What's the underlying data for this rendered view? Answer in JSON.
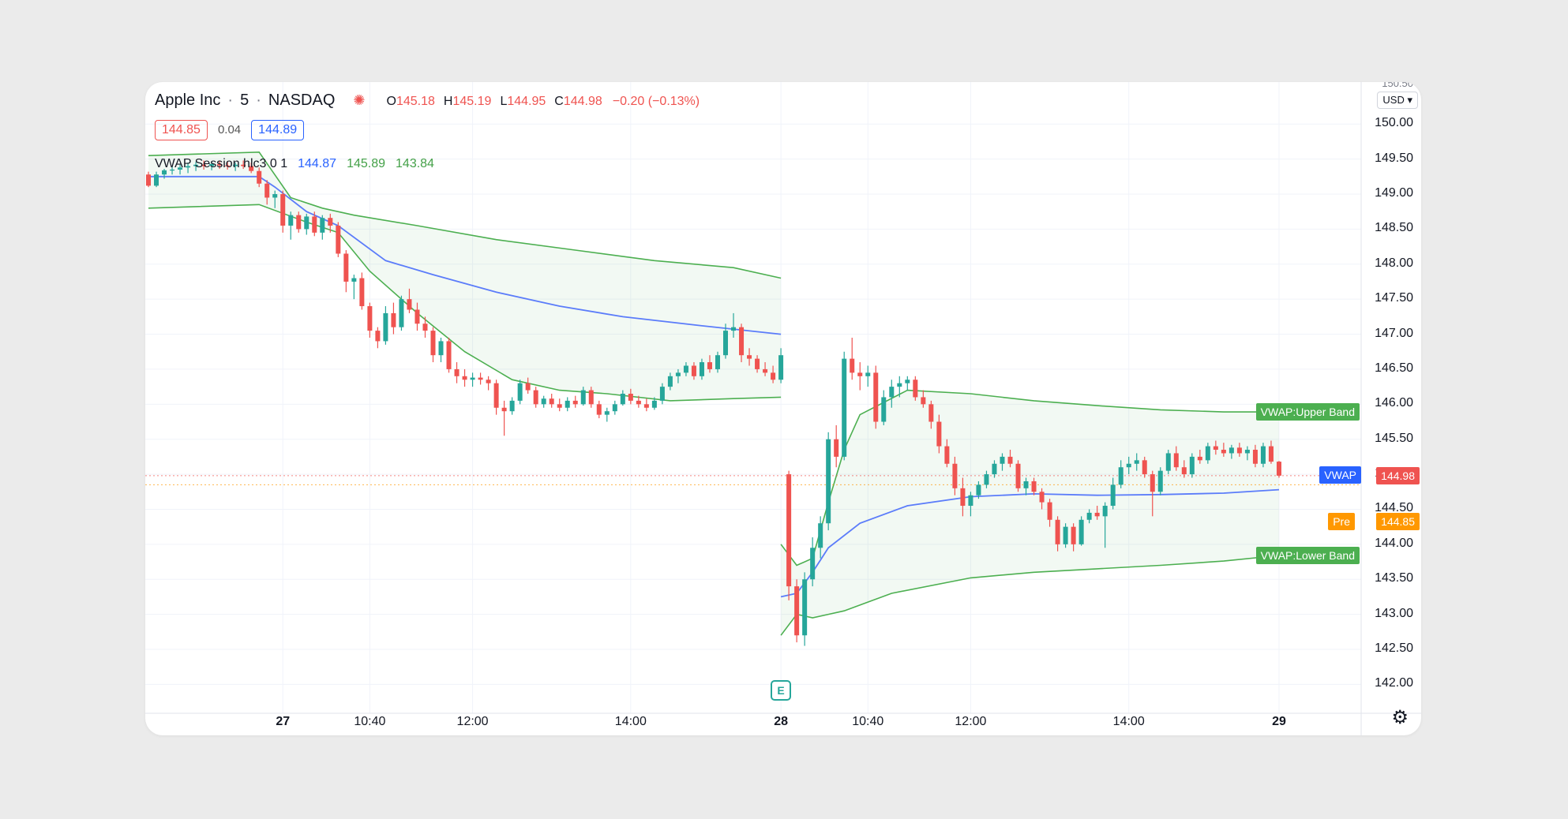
{
  "header": {
    "symbol": "Apple Inc",
    "sep1": "·",
    "interval": "5",
    "sep2": "·",
    "exchange": "NASDAQ",
    "ohlc": {
      "o_label": "O",
      "o": "145.18",
      "h_label": "H",
      "h": "145.19",
      "l_label": "L",
      "l": "144.95",
      "c_label": "C",
      "c": "144.98",
      "change": "−0.20 (−0.13%)"
    }
  },
  "quote": {
    "bid": "144.85",
    "spread": "0.04",
    "ask": "144.89"
  },
  "indicator": {
    "name": "VWAP Session hlc3 0 1",
    "vwap": "144.87",
    "upper": "145.89",
    "lower": "143.84"
  },
  "price_axis": {
    "currency_button": "USD ▾",
    "top_partial_label": "150.50"
  },
  "tags": {
    "upper_band": "VWAP:Upper Band",
    "lower_band": "VWAP:Lower Band",
    "vwap": "VWAP",
    "last_price": "144.98",
    "pre_label": "Pre",
    "pre_price": "144.85"
  },
  "earnings_marker": "E",
  "settings_icon": "gear-icon",
  "colors": {
    "up": "#26a69a",
    "down": "#ef5350",
    "vwap": "#5b7cfa",
    "band": "#4caf50",
    "band_fill": "rgba(76,175,80,0.07)",
    "pre": "#ff9800"
  },
  "chart_data": {
    "type": "candlestick",
    "ylim": [
      141.7,
      150.6
    ],
    "yticks": [
      142.0,
      142.5,
      143.0,
      143.5,
      144.0,
      144.5,
      145.0,
      145.5,
      146.0,
      146.5,
      147.0,
      147.5,
      148.0,
      148.5,
      149.0,
      149.5,
      150.0
    ],
    "ytick_labels": [
      "142.00",
      "142.50",
      "143.00",
      "143.50",
      "144.00",
      "144.50",
      "145.00",
      "145.50",
      "146.00",
      "146.50",
      "147.00",
      "147.50",
      "148.00",
      "148.50",
      "149.00",
      "149.50",
      "150.00"
    ],
    "xticks": [
      {
        "label": "27",
        "bold": true,
        "i": 17
      },
      {
        "label": "10:40",
        "bold": false,
        "i": 28
      },
      {
        "label": "12:00",
        "bold": false,
        "i": 41
      },
      {
        "label": "14:00",
        "bold": false,
        "i": 61
      },
      {
        "label": "28",
        "bold": true,
        "i": 80
      },
      {
        "label": "10:40",
        "bold": false,
        "i": 91
      },
      {
        "label": "12:00",
        "bold": false,
        "i": 104
      },
      {
        "label": "14:00",
        "bold": false,
        "i": 124
      },
      {
        "label": "29",
        "bold": true,
        "i": 143
      }
    ],
    "bar_count": 146,
    "candles": [
      [
        149.28,
        149.32,
        149.1,
        149.12
      ],
      [
        149.12,
        149.32,
        149.1,
        149.28
      ],
      [
        149.28,
        149.36,
        149.22,
        149.34
      ],
      [
        149.34,
        149.4,
        149.28,
        149.35
      ],
      [
        149.35,
        149.42,
        149.28,
        149.38
      ],
      [
        149.38,
        149.45,
        149.3,
        149.4
      ],
      [
        149.4,
        149.46,
        149.33,
        149.42
      ],
      [
        149.42,
        149.48,
        149.35,
        149.4
      ],
      [
        149.4,
        149.46,
        149.34,
        149.43
      ],
      [
        149.43,
        149.48,
        149.36,
        149.41
      ],
      [
        149.41,
        149.46,
        149.35,
        149.4
      ],
      [
        149.4,
        149.45,
        149.33,
        149.42
      ],
      [
        149.42,
        149.48,
        149.36,
        149.4
      ],
      [
        149.4,
        149.45,
        149.3,
        149.33
      ],
      [
        149.33,
        149.38,
        149.1,
        149.15
      ],
      [
        149.15,
        149.2,
        148.85,
        148.95
      ],
      [
        148.95,
        149.05,
        148.8,
        149.0
      ],
      [
        149.0,
        149.05,
        148.45,
        148.55
      ],
      [
        148.55,
        148.75,
        148.35,
        148.7
      ],
      [
        148.7,
        148.75,
        148.45,
        148.5
      ],
      [
        148.5,
        148.72,
        148.42,
        148.68
      ],
      [
        148.68,
        148.75,
        148.4,
        148.45
      ],
      [
        148.45,
        148.7,
        148.35,
        148.66
      ],
      [
        148.66,
        148.72,
        148.45,
        148.55
      ],
      [
        148.55,
        148.6,
        148.1,
        148.15
      ],
      [
        148.15,
        148.2,
        147.6,
        147.75
      ],
      [
        147.75,
        147.85,
        147.5,
        147.8
      ],
      [
        147.8,
        147.88,
        147.35,
        147.4
      ],
      [
        147.4,
        147.45,
        146.95,
        147.05
      ],
      [
        147.05,
        147.1,
        146.8,
        146.9
      ],
      [
        146.9,
        147.4,
        146.85,
        147.3
      ],
      [
        147.3,
        147.45,
        147.0,
        147.1
      ],
      [
        147.1,
        147.55,
        147.05,
        147.5
      ],
      [
        147.5,
        147.65,
        147.3,
        147.35
      ],
      [
        147.35,
        147.45,
        147.05,
        147.15
      ],
      [
        147.15,
        147.25,
        146.95,
        147.05
      ],
      [
        147.05,
        147.1,
        146.6,
        146.7
      ],
      [
        146.7,
        146.95,
        146.6,
        146.9
      ],
      [
        146.9,
        146.95,
        146.45,
        146.5
      ],
      [
        146.5,
        146.6,
        146.3,
        146.4
      ],
      [
        146.4,
        146.5,
        146.25,
        146.35
      ],
      [
        146.35,
        146.45,
        146.25,
        146.38
      ],
      [
        146.38,
        146.45,
        146.28,
        146.35
      ],
      [
        146.35,
        146.4,
        146.2,
        146.3
      ],
      [
        146.3,
        146.35,
        145.85,
        145.95
      ],
      [
        145.95,
        146.05,
        145.55,
        145.9
      ],
      [
        145.9,
        146.1,
        145.85,
        146.05
      ],
      [
        146.05,
        146.35,
        146.0,
        146.3
      ],
      [
        146.3,
        146.38,
        146.15,
        146.2
      ],
      [
        146.2,
        146.25,
        145.95,
        146.0
      ],
      [
        146.0,
        146.12,
        145.95,
        146.08
      ],
      [
        146.08,
        146.15,
        145.95,
        146.0
      ],
      [
        146.0,
        146.08,
        145.9,
        145.95
      ],
      [
        145.95,
        146.1,
        145.9,
        146.05
      ],
      [
        146.05,
        146.12,
        145.95,
        146.0
      ],
      [
        146.0,
        146.25,
        145.98,
        146.2
      ],
      [
        146.2,
        146.25,
        145.95,
        146.0
      ],
      [
        146.0,
        146.05,
        145.8,
        145.85
      ],
      [
        145.85,
        145.95,
        145.75,
        145.9
      ],
      [
        145.9,
        146.05,
        145.85,
        146.0
      ],
      [
        146.0,
        146.2,
        145.98,
        146.15
      ],
      [
        146.15,
        146.22,
        146.0,
        146.05
      ],
      [
        146.05,
        146.12,
        145.95,
        146.0
      ],
      [
        146.0,
        146.08,
        145.9,
        145.95
      ],
      [
        145.95,
        146.1,
        145.92,
        146.05
      ],
      [
        146.05,
        146.3,
        146.0,
        146.25
      ],
      [
        146.25,
        146.45,
        146.2,
        146.4
      ],
      [
        146.4,
        146.5,
        146.3,
        146.45
      ],
      [
        146.45,
        146.6,
        146.4,
        146.55
      ],
      [
        146.55,
        146.6,
        146.35,
        146.4
      ],
      [
        146.4,
        146.65,
        146.35,
        146.6
      ],
      [
        146.6,
        146.7,
        146.45,
        146.5
      ],
      [
        146.5,
        146.75,
        146.45,
        146.7
      ],
      [
        146.7,
        147.15,
        146.65,
        147.05
      ],
      [
        147.05,
        147.3,
        146.95,
        147.1
      ],
      [
        147.1,
        147.15,
        146.6,
        146.7
      ],
      [
        146.7,
        146.8,
        146.55,
        146.65
      ],
      [
        146.65,
        146.7,
        146.45,
        146.5
      ],
      [
        146.5,
        146.6,
        146.4,
        146.45
      ],
      [
        146.45,
        146.55,
        146.3,
        146.35
      ],
      [
        146.35,
        146.8,
        146.3,
        146.7
      ],
      [
        145.0,
        145.05,
        143.2,
        143.4
      ],
      [
        143.4,
        143.5,
        142.6,
        142.7
      ],
      [
        142.7,
        143.6,
        142.55,
        143.5
      ],
      [
        143.5,
        144.1,
        143.4,
        143.95
      ],
      [
        143.95,
        144.4,
        143.8,
        144.3
      ],
      [
        144.3,
        145.6,
        144.2,
        145.5
      ],
      [
        145.5,
        145.7,
        145.1,
        145.25
      ],
      [
        145.25,
        146.75,
        145.2,
        146.65
      ],
      [
        146.65,
        146.95,
        146.35,
        146.45
      ],
      [
        146.45,
        146.6,
        146.2,
        146.4
      ],
      [
        146.4,
        146.55,
        146.25,
        146.45
      ],
      [
        146.45,
        146.55,
        145.65,
        145.75
      ],
      [
        145.75,
        146.2,
        145.7,
        146.1
      ],
      [
        146.1,
        146.35,
        145.95,
        146.25
      ],
      [
        146.25,
        146.4,
        146.1,
        146.3
      ],
      [
        146.3,
        146.4,
        146.2,
        146.35
      ],
      [
        146.35,
        146.4,
        146.05,
        146.1
      ],
      [
        146.1,
        146.2,
        145.95,
        146.0
      ],
      [
        146.0,
        146.05,
        145.65,
        145.75
      ],
      [
        145.75,
        145.85,
        145.3,
        145.4
      ],
      [
        145.4,
        145.5,
        145.1,
        145.15
      ],
      [
        145.15,
        145.25,
        144.7,
        144.8
      ],
      [
        144.8,
        144.95,
        144.4,
        144.55
      ],
      [
        144.55,
        144.75,
        144.4,
        144.7
      ],
      [
        144.7,
        144.9,
        144.65,
        144.85
      ],
      [
        144.85,
        145.05,
        144.8,
        145.0
      ],
      [
        145.0,
        145.2,
        144.95,
        145.15
      ],
      [
        145.15,
        145.3,
        145.05,
        145.25
      ],
      [
        145.25,
        145.35,
        145.1,
        145.15
      ],
      [
        145.15,
        145.2,
        144.75,
        144.8
      ],
      [
        144.8,
        144.95,
        144.7,
        144.9
      ],
      [
        144.9,
        144.95,
        144.7,
        144.75
      ],
      [
        144.75,
        144.8,
        144.5,
        144.6
      ],
      [
        144.6,
        144.65,
        144.25,
        144.35
      ],
      [
        144.35,
        144.4,
        143.9,
        144.0
      ],
      [
        144.0,
        144.3,
        143.95,
        144.25
      ],
      [
        144.25,
        144.3,
        143.9,
        144.0
      ],
      [
        144.0,
        144.4,
        143.98,
        144.35
      ],
      [
        144.35,
        144.5,
        144.3,
        144.45
      ],
      [
        144.45,
        144.55,
        144.35,
        144.4
      ],
      [
        144.4,
        144.6,
        143.95,
        144.55
      ],
      [
        144.55,
        144.95,
        144.5,
        144.85
      ],
      [
        144.85,
        145.2,
        144.8,
        145.1
      ],
      [
        145.1,
        145.25,
        145.0,
        145.15
      ],
      [
        145.15,
        145.3,
        145.05,
        145.2
      ],
      [
        145.2,
        145.25,
        144.95,
        145.0
      ],
      [
        145.0,
        145.05,
        144.4,
        144.75
      ],
      [
        144.75,
        145.1,
        144.7,
        145.05
      ],
      [
        145.05,
        145.35,
        145.0,
        145.3
      ],
      [
        145.3,
        145.4,
        145.05,
        145.1
      ],
      [
        145.1,
        145.2,
        144.95,
        145.0
      ],
      [
        145.0,
        145.3,
        144.95,
        145.25
      ],
      [
        145.25,
        145.35,
        145.15,
        145.2
      ],
      [
        145.2,
        145.45,
        145.15,
        145.4
      ],
      [
        145.4,
        145.48,
        145.28,
        145.35
      ],
      [
        145.35,
        145.45,
        145.25,
        145.3
      ],
      [
        145.3,
        145.42,
        145.22,
        145.38
      ],
      [
        145.38,
        145.45,
        145.25,
        145.3
      ],
      [
        145.3,
        145.4,
        145.2,
        145.35
      ],
      [
        145.35,
        145.42,
        145.1,
        145.15
      ],
      [
        145.15,
        145.45,
        145.1,
        145.4
      ],
      [
        145.4,
        145.48,
        145.15,
        145.18
      ],
      [
        145.18,
        145.19,
        144.95,
        144.98
      ]
    ],
    "vwap_session1": [
      [
        0,
        149.25
      ],
      [
        14,
        149.25
      ],
      [
        16,
        149.1
      ],
      [
        20,
        148.75
      ],
      [
        24,
        148.55
      ],
      [
        30,
        148.05
      ],
      [
        36,
        147.85
      ],
      [
        44,
        147.6
      ],
      [
        52,
        147.4
      ],
      [
        60,
        147.25
      ],
      [
        70,
        147.12
      ],
      [
        80,
        147.0
      ]
    ],
    "upper_session1": [
      [
        0,
        149.55
      ],
      [
        14,
        149.6
      ],
      [
        18,
        148.95
      ],
      [
        22,
        148.8
      ],
      [
        26,
        148.7
      ],
      [
        34,
        148.55
      ],
      [
        44,
        148.35
      ],
      [
        54,
        148.2
      ],
      [
        64,
        148.05
      ],
      [
        74,
        147.95
      ],
      [
        80,
        147.8
      ]
    ],
    "lower_session1": [
      [
        0,
        148.8
      ],
      [
        14,
        148.85
      ],
      [
        20,
        148.6
      ],
      [
        24,
        148.45
      ],
      [
        28,
        147.9
      ],
      [
        34,
        147.3
      ],
      [
        40,
        146.75
      ],
      [
        46,
        146.35
      ],
      [
        52,
        146.2
      ],
      [
        58,
        146.15
      ],
      [
        66,
        146.05
      ],
      [
        74,
        146.08
      ],
      [
        80,
        146.1
      ]
    ],
    "vwap_session2": [
      [
        80,
        143.25
      ],
      [
        82,
        143.3
      ],
      [
        84,
        143.6
      ],
      [
        86,
        143.95
      ],
      [
        90,
        144.3
      ],
      [
        96,
        144.55
      ],
      [
        104,
        144.68
      ],
      [
        112,
        144.72
      ],
      [
        120,
        144.7
      ],
      [
        128,
        144.71
      ],
      [
        136,
        144.73
      ],
      [
        143,
        144.78
      ]
    ],
    "upper_session2": [
      [
        80,
        144.0
      ],
      [
        82,
        143.7
      ],
      [
        84,
        143.8
      ],
      [
        86,
        144.6
      ],
      [
        88,
        145.35
      ],
      [
        90,
        145.85
      ],
      [
        96,
        146.2
      ],
      [
        104,
        146.15
      ],
      [
        112,
        146.05
      ],
      [
        120,
        145.98
      ],
      [
        128,
        145.92
      ],
      [
        136,
        145.89
      ],
      [
        143,
        145.89
      ]
    ],
    "lower_session2": [
      [
        80,
        142.7
      ],
      [
        82,
        143.0
      ],
      [
        84,
        142.95
      ],
      [
        86,
        143.0
      ],
      [
        88,
        143.05
      ],
      [
        94,
        143.3
      ],
      [
        104,
        143.52
      ],
      [
        112,
        143.6
      ],
      [
        120,
        143.65
      ],
      [
        128,
        143.7
      ],
      [
        136,
        143.76
      ],
      [
        143,
        143.84
      ]
    ],
    "last_price": 144.98,
    "pre_price": 144.85,
    "vwap_last": 144.87,
    "upper_last": 145.89,
    "lower_last": 143.84
  }
}
